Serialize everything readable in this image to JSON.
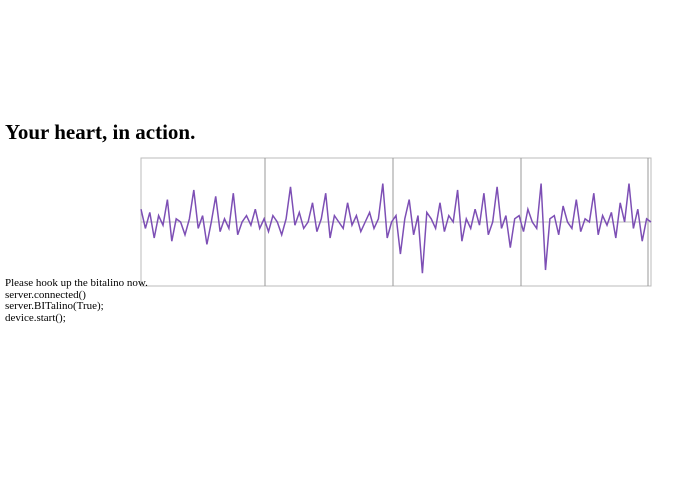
{
  "header": {
    "title": "Your heart, in action."
  },
  "chart_data": {
    "type": "line",
    "color": "#7d4fb5",
    "ylim": [
      -1,
      1
    ],
    "values": [
      0.2,
      -0.1,
      0.15,
      -0.25,
      0.1,
      -0.05,
      0.35,
      -0.3,
      0.05,
      0.0,
      -0.2,
      0.05,
      0.5,
      -0.1,
      0.1,
      -0.35,
      0.0,
      0.4,
      -0.15,
      0.05,
      -0.1,
      0.45,
      -0.2,
      0.0,
      0.1,
      -0.05,
      0.2,
      -0.1,
      0.05,
      -0.15,
      0.1,
      0.0,
      -0.2,
      0.05,
      0.55,
      -0.05,
      0.15,
      -0.1,
      0.0,
      0.3,
      -0.15,
      0.05,
      0.45,
      -0.25,
      0.1,
      0.0,
      -0.1,
      0.3,
      -0.05,
      0.1,
      -0.15,
      0.0,
      0.15,
      -0.1,
      0.05,
      0.6,
      -0.25,
      0.0,
      0.1,
      -0.5,
      0.05,
      0.35,
      -0.2,
      0.1,
      -0.8,
      0.15,
      0.05,
      -0.1,
      0.3,
      -0.15,
      0.1,
      0.0,
      0.5,
      -0.3,
      0.05,
      -0.1,
      0.2,
      -0.05,
      0.45,
      -0.2,
      0.0,
      0.55,
      -0.1,
      0.1,
      -0.4,
      0.05,
      0.1,
      -0.15,
      0.2,
      0.0,
      -0.1,
      0.6,
      -0.75,
      0.05,
      0.1,
      -0.2,
      0.25,
      0.0,
      -0.1,
      0.35,
      -0.15,
      0.05,
      0.0,
      0.45,
      -0.2,
      0.1,
      -0.05,
      0.15,
      -0.25,
      0.3,
      0.0,
      0.6,
      -0.1,
      0.2,
      -0.3,
      0.05,
      0.0
    ]
  },
  "log": [
    "Please hook up the bitalino now.",
    "server.connected()",
    "server.BITalino(True);",
    "device.start();"
  ]
}
